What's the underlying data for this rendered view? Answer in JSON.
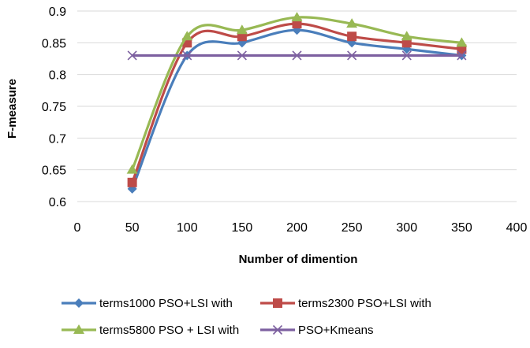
{
  "chart_data": {
    "type": "line",
    "title": "",
    "xlabel": "Number of dimention",
    "ylabel": "F-measure",
    "xlim": [
      0,
      400
    ],
    "ylim": [
      0.6,
      0.9
    ],
    "xticks": [
      0,
      50,
      100,
      150,
      200,
      250,
      300,
      350,
      400
    ],
    "yticks": [
      0.6,
      0.65,
      0.7,
      0.75,
      0.8,
      0.85,
      0.9
    ],
    "xtick_labels": [
      "0",
      "50",
      "100",
      "150",
      "200",
      "250",
      "300",
      "350",
      "400"
    ],
    "ytick_labels": [
      "0.6",
      "0.65",
      "0.7",
      "0.75",
      "0.8",
      "0.85",
      "0.9"
    ],
    "grid": "horizontal",
    "legend_position": "bottom",
    "series": [
      {
        "name": "terms1000 PSO+LSI with",
        "color": "#4a7ebb",
        "marker": "diamond",
        "x": [
          50,
          100,
          150,
          200,
          250,
          300,
          350
        ],
        "y": [
          0.62,
          0.83,
          0.85,
          0.87,
          0.85,
          0.84,
          0.83
        ]
      },
      {
        "name": "terms2300 PSO+LSI with",
        "color": "#be4b48",
        "marker": "square",
        "x": [
          50,
          100,
          150,
          200,
          250,
          300,
          350
        ],
        "y": [
          0.63,
          0.85,
          0.86,
          0.88,
          0.86,
          0.85,
          0.84
        ]
      },
      {
        "name": "terms5800 PSO + LSI with",
        "color": "#98b954",
        "marker": "triangle",
        "x": [
          50,
          100,
          150,
          200,
          250,
          300,
          350
        ],
        "y": [
          0.65,
          0.86,
          0.87,
          0.89,
          0.88,
          0.86,
          0.85
        ]
      },
      {
        "name": "PSO+Kmeans",
        "color": "#7d60a0",
        "marker": "x",
        "x": [
          50,
          100,
          150,
          200,
          250,
          300,
          350
        ],
        "y": [
          0.83,
          0.83,
          0.83,
          0.83,
          0.83,
          0.83,
          0.83
        ]
      }
    ]
  }
}
